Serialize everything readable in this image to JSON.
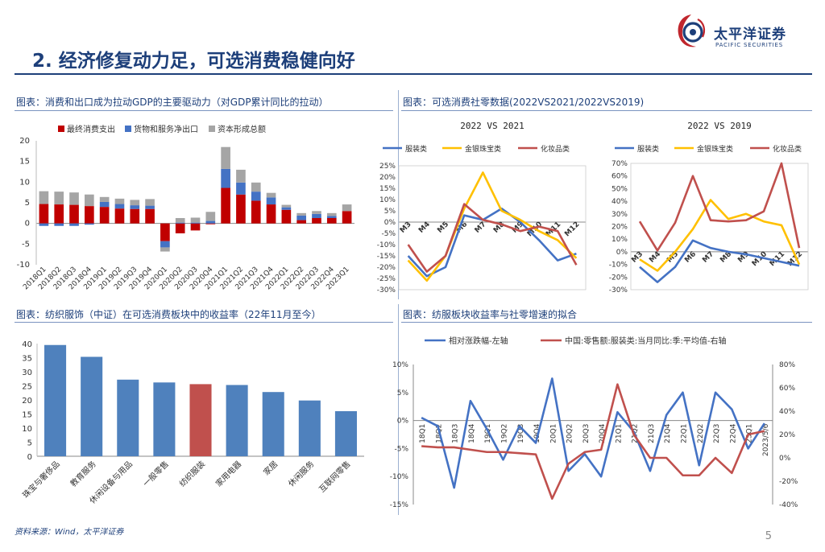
{
  "header": {
    "title": "2. 经济修复动力足，可选消费稳健向好",
    "brand_cn": "太平洋证券",
    "brand_en": "PACIFIC SECURITIES",
    "brand_color": "#1d3f7a",
    "logo_accent": "#c0262d"
  },
  "captions": {
    "c1": "图表：消费和出口成为拉动GDP的主要驱动力（对GDP累计同比的拉动）",
    "c2": "图表：可选消费社零数据(2022VS2021/2022VS2019)",
    "c3": "图表：纺织服饰（中证）在可选消费板块中的收益率（22年11月至今）",
    "c4": "图表：纺服板块收益率与社零增速的拟合"
  },
  "footer": {
    "source": "资料来源：Wind，太平洋证券",
    "page": "5"
  },
  "chart_data": [
    {
      "id": "gdp",
      "type": "bar",
      "stacked": true,
      "categories": [
        "2018Q1",
        "2018Q2",
        "2018Q3",
        "2018Q4",
        "2019Q1",
        "2019Q2",
        "2019Q3",
        "2019Q4",
        "2020Q1",
        "2020Q2",
        "2020Q3",
        "2020Q4",
        "2021Q1",
        "2021Q2",
        "2021Q3",
        "2021Q4",
        "2022Q1",
        "2022Q2",
        "2022Q3",
        "2022Q4",
        "2023Q1"
      ],
      "series": [
        {
          "name": "最终消费支出",
          "color": "#c00000",
          "values": [
            4.7,
            4.6,
            4.5,
            4.2,
            4.0,
            3.6,
            3.5,
            3.5,
            -4.3,
            -2.4,
            -1.7,
            -0.2,
            8.6,
            7.0,
            5.5,
            4.6,
            3.3,
            0.8,
            1.3,
            1.3,
            3.0
          ]
        },
        {
          "name": "货物和服务净出口",
          "color": "#4472c4",
          "values": [
            -0.6,
            -0.6,
            -0.6,
            -0.3,
            1.2,
            1.1,
            0.9,
            0.8,
            -1.5,
            0.2,
            0.2,
            0.6,
            4.6,
            2.9,
            2.2,
            1.7,
            0.6,
            1.1,
            1.0,
            0.5,
            0.0
          ]
        },
        {
          "name": "资本形成总额",
          "color": "#a5a5a5",
          "values": [
            3.1,
            3.1,
            3.0,
            2.8,
            1.2,
            1.3,
            1.3,
            1.6,
            -1.0,
            1.1,
            1.2,
            2.2,
            5.3,
            3.1,
            2.2,
            1.1,
            0.6,
            0.6,
            0.7,
            0.7,
            1.6
          ]
        }
      ],
      "ylim": [
        -10,
        20
      ],
      "yticks": [
        -10,
        -5,
        0,
        5,
        10,
        15,
        20
      ],
      "legend": "top"
    },
    {
      "id": "retail2021",
      "type": "line",
      "title": "2022 VS 2021",
      "x": [
        "M3",
        "M4",
        "M5",
        "M6",
        "M7",
        "M8",
        "M9",
        "M10",
        "M11",
        "M12"
      ],
      "series": [
        {
          "name": "服装类",
          "color": "#4472c4",
          "values": [
            -15,
            -24,
            -20,
            3,
            1,
            6,
            0,
            -8,
            -17,
            -14
          ]
        },
        {
          "name": "金银珠宝类",
          "color": "#ffc000",
          "values": [
            -17,
            -26,
            -15,
            6,
            22,
            5,
            1,
            -4,
            -8,
            -16
          ]
        },
        {
          "name": "化妆品类",
          "color": "#c0504d",
          "values": [
            -10,
            -22,
            -15,
            8,
            1,
            -1,
            -4,
            -2,
            -4,
            -19
          ]
        }
      ],
      "ylim": [
        -30,
        25
      ],
      "yticks": [
        "25%",
        "20%",
        "15%",
        "10%",
        "5%",
        "0%",
        "-5%",
        "-10%",
        "-15%",
        "-20%",
        "-25%",
        "-30%"
      ],
      "legend": "top"
    },
    {
      "id": "retail2019",
      "type": "line",
      "title": "2022 VS 2019",
      "x": [
        "M3",
        "M4",
        "M5",
        "M6",
        "M7",
        "M8",
        "M9",
        "M10",
        "M11",
        "M12"
      ],
      "series": [
        {
          "name": "服装类",
          "color": "#4472c4",
          "values": [
            -12,
            -24,
            -12,
            9,
            3,
            0,
            -2,
            -5,
            -8,
            -11
          ]
        },
        {
          "name": "金银珠宝类",
          "color": "#ffc000",
          "values": [
            -6,
            -15,
            0,
            18,
            41,
            26,
            30,
            24,
            21,
            -10
          ]
        },
        {
          "name": "化妆品类",
          "color": "#c0504d",
          "values": [
            24,
            1,
            23,
            60,
            25,
            24,
            25,
            32,
            70,
            3
          ]
        }
      ],
      "ylim": [
        -30,
        70
      ],
      "yticks": [
        "70%",
        "60%",
        "50%",
        "40%",
        "30%",
        "20%",
        "10%",
        "0%",
        "-10%",
        "-20%",
        "-30%"
      ],
      "legend": "top"
    },
    {
      "id": "returns",
      "type": "bar",
      "categories": [
        "珠宝与奢侈品",
        "教育服务",
        "休闲设备与用品",
        "一般零售",
        "纺织服装",
        "家用电器",
        "家居",
        "休闲服务",
        "互联网零售"
      ],
      "values": [
        39.5,
        35.3,
        27.2,
        26.2,
        25.6,
        25.3,
        22.8,
        19.8,
        16.0
      ],
      "highlight": "纺织服装",
      "colors": {
        "default": "#4f81bd",
        "highlight": "#c0504d"
      },
      "ylim": [
        0,
        40
      ],
      "yticks": [
        0,
        5,
        10,
        15,
        20,
        25,
        30,
        35,
        40
      ]
    },
    {
      "id": "fit",
      "type": "line",
      "x": [
        "18Q1",
        "18Q2",
        "18Q3",
        "18Q4",
        "19Q1",
        "19Q2",
        "19Q3",
        "19Q4",
        "20Q1",
        "20Q2",
        "20Q3",
        "20Q4",
        "21Q1",
        "21Q2",
        "21Q3",
        "21Q4",
        "22Q1",
        "22Q2",
        "22Q3",
        "22Q4",
        "23Q1",
        "2023/5/6"
      ],
      "series": [
        {
          "name": "相对涨跌幅-左轴",
          "axis": "left",
          "color": "#4472c4",
          "values": [
            0.5,
            -1,
            -12,
            3.5,
            -1.5,
            -7,
            -1,
            -4,
            7.5,
            -9,
            -6,
            -10,
            1.5,
            -2,
            -9,
            1,
            5,
            -8,
            5,
            2,
            -5,
            -0.5
          ]
        },
        {
          "name": "中国:零售额:服装类:当月同比:季:平均值-右轴",
          "axis": "right",
          "color": "#c0504d",
          "values": [
            10,
            9,
            9,
            7,
            5,
            5,
            4,
            3,
            -35,
            -5,
            5,
            7,
            63,
            20,
            0,
            0,
            -15,
            -15,
            0,
            -13,
            20,
            23
          ]
        }
      ],
      "yleft_ticks": [
        "10%",
        "5%",
        "0%",
        "-5%",
        "-10%",
        "-15%"
      ],
      "yleft": [
        -15,
        10
      ],
      "yright_ticks": [
        "80%",
        "60%",
        "40%",
        "20%",
        "0%",
        "-20%",
        "-40%"
      ],
      "yright": [
        -40,
        80
      ],
      "legend": "top"
    }
  ]
}
